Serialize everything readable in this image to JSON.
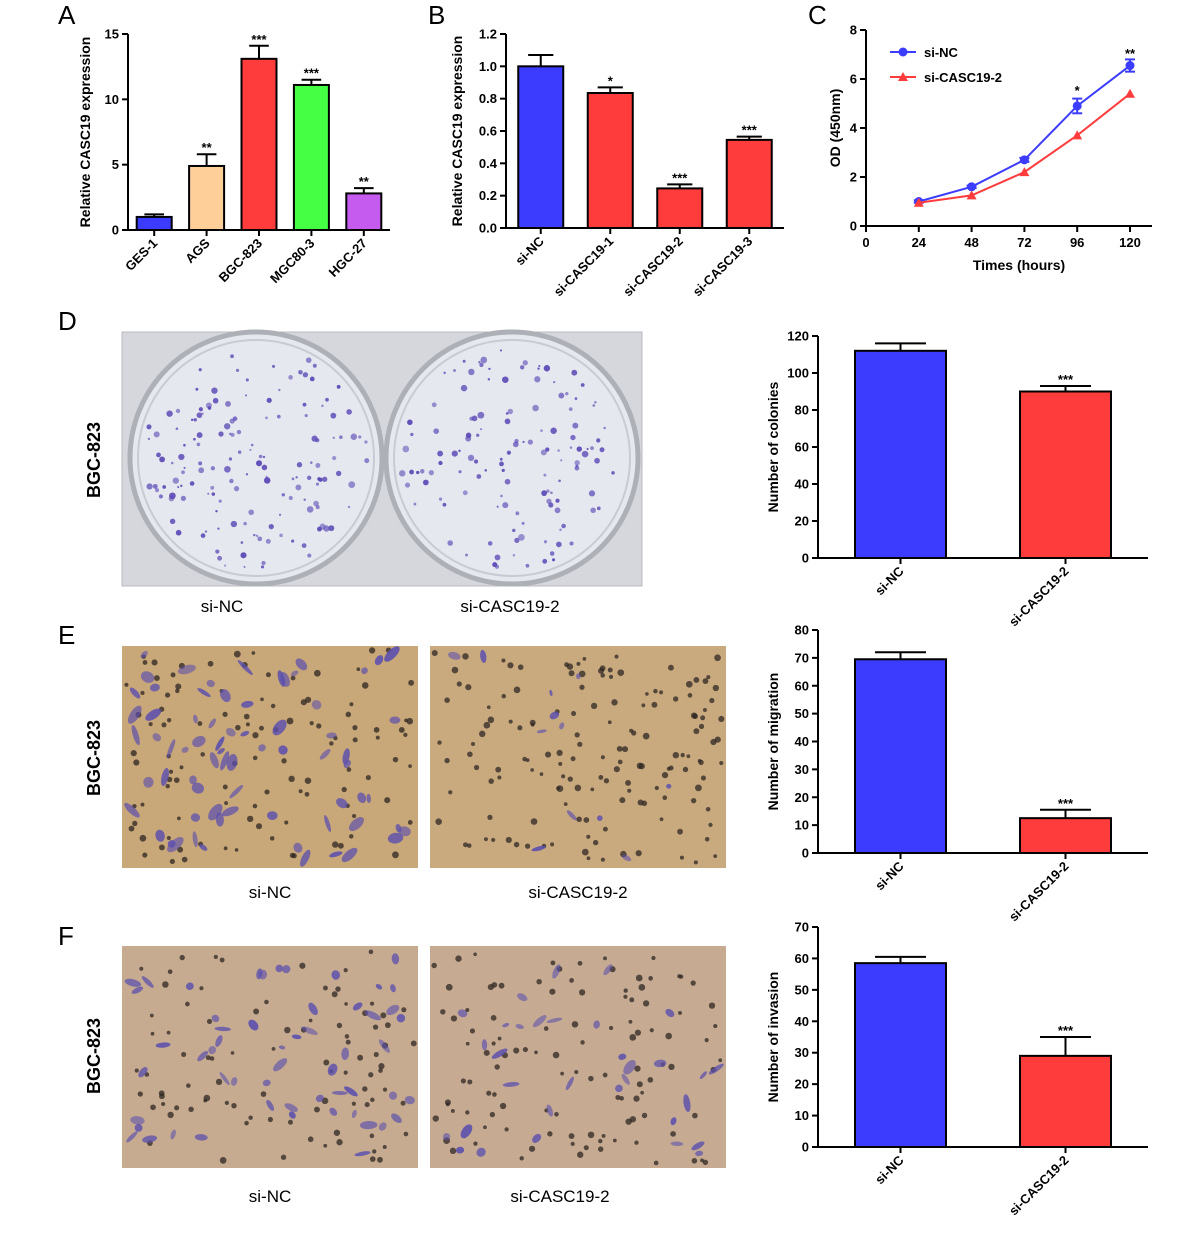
{
  "panels": {
    "A": "A",
    "B": "B",
    "C": "C",
    "D": "D",
    "E": "E",
    "F": "F"
  },
  "photos": {
    "side_label": "BGC-823",
    "left_label": "si-NC",
    "right_label": "si-CASC19-2"
  },
  "colors": {
    "blue": "#3c3cff",
    "red": "#ff3c3c",
    "peach": "#ffcf99",
    "green": "#44ff44",
    "purple": "#c65bf0",
    "plate_bg": "#d8d8dc",
    "dish": "#e4e6ee",
    "colony": "#5a48b6",
    "field_E": "#c9a77a",
    "field_F": "#c4a98e",
    "cell": "#6a5cae"
  },
  "chart_data": [
    {
      "id": "A",
      "type": "bar",
      "ylabel": "Relative CASC19 expression",
      "categories": [
        "GES-1",
        "AGS",
        "BGC-823",
        "MGC80-3",
        "HGC-27"
      ],
      "values": [
        1.0,
        4.9,
        13.1,
        11.1,
        2.8
      ],
      "errors": [
        0.2,
        0.9,
        1.0,
        0.4,
        0.4
      ],
      "significance": [
        "",
        "**",
        "***",
        "***",
        "**"
      ],
      "colors": [
        "#3c3cff",
        "#ffcf99",
        "#ff3c3c",
        "#44ff44",
        "#c65bf0"
      ],
      "ylim": [
        0,
        15
      ],
      "yticks": [
        0,
        5,
        10,
        15
      ]
    },
    {
      "id": "B",
      "type": "bar",
      "ylabel": "Relative CASC19 expression",
      "categories": [
        "si-NC",
        "si-CASC19-1",
        "si-CASC19-2",
        "si-CASC19-3"
      ],
      "values": [
        1.0,
        0.835,
        0.245,
        0.545
      ],
      "errors": [
        0.07,
        0.035,
        0.025,
        0.02
      ],
      "significance": [
        "",
        "*",
        "***",
        "***"
      ],
      "colors": [
        "#3c3cff",
        "#ff3c3c",
        "#ff3c3c",
        "#ff3c3c"
      ],
      "ylim": [
        0,
        1.2
      ],
      "yticks": [
        "0.0",
        "0.2",
        "0.4",
        "0.6",
        "0.8",
        "1.0",
        "1.2"
      ]
    },
    {
      "id": "C",
      "type": "line",
      "xlabel": "Times (hours)",
      "ylabel": "OD (450nm)",
      "xlim": [
        0,
        130
      ],
      "ylim": [
        0,
        8
      ],
      "xticks": [
        0,
        24,
        48,
        72,
        96,
        120
      ],
      "yticks": [
        0,
        2,
        4,
        6,
        8
      ],
      "legend": "top-left",
      "series": [
        {
          "name": "si-NC",
          "marker": "circle",
          "color": "#3c3cff",
          "x": [
            24,
            48,
            72,
            96,
            120
          ],
          "y": [
            1.0,
            1.6,
            2.7,
            4.9,
            6.55
          ],
          "errors": [
            0.05,
            0.05,
            0.08,
            0.3,
            0.25
          ]
        },
        {
          "name": "si-CASC19-2",
          "marker": "triangle",
          "color": "#ff3c3c",
          "x": [
            24,
            48,
            72,
            96,
            120
          ],
          "y": [
            0.95,
            1.25,
            2.2,
            3.7,
            5.4
          ],
          "errors": [
            0,
            0,
            0,
            0,
            0
          ]
        }
      ],
      "annotations": [
        {
          "x": 96,
          "y": 5.6,
          "text": "*"
        },
        {
          "x": 120,
          "y": 7.1,
          "text": "**"
        }
      ]
    },
    {
      "id": "D",
      "type": "bar",
      "ylabel": "Number of colonies",
      "categories": [
        "si-NC",
        "si-CASC19-2"
      ],
      "values": [
        112,
        90
      ],
      "errors": [
        4,
        3
      ],
      "significance": [
        "",
        "***"
      ],
      "colors": [
        "#3c3cff",
        "#ff3c3c"
      ],
      "ylim": [
        0,
        120
      ],
      "yticks": [
        0,
        20,
        40,
        60,
        80,
        100,
        120
      ]
    },
    {
      "id": "E",
      "type": "bar",
      "ylabel": "Number of migration",
      "categories": [
        "si-NC",
        "si-CASC19-2"
      ],
      "values": [
        69.5,
        12.5
      ],
      "errors": [
        2.5,
        3
      ],
      "significance": [
        "",
        "***"
      ],
      "colors": [
        "#3c3cff",
        "#ff3c3c"
      ],
      "ylim": [
        0,
        80
      ],
      "yticks": [
        0,
        10,
        20,
        30,
        40,
        50,
        60,
        70,
        80
      ]
    },
    {
      "id": "F",
      "type": "bar",
      "ylabel": "Number of invasion",
      "categories": [
        "si-NC",
        "si-CASC19-2"
      ],
      "values": [
        58.5,
        29
      ],
      "errors": [
        2,
        6
      ],
      "significance": [
        "",
        "***"
      ],
      "colors": [
        "#3c3cff",
        "#ff3c3c"
      ],
      "ylim": [
        0,
        70
      ],
      "yticks": [
        0,
        10,
        20,
        30,
        40,
        50,
        60,
        70
      ]
    }
  ]
}
